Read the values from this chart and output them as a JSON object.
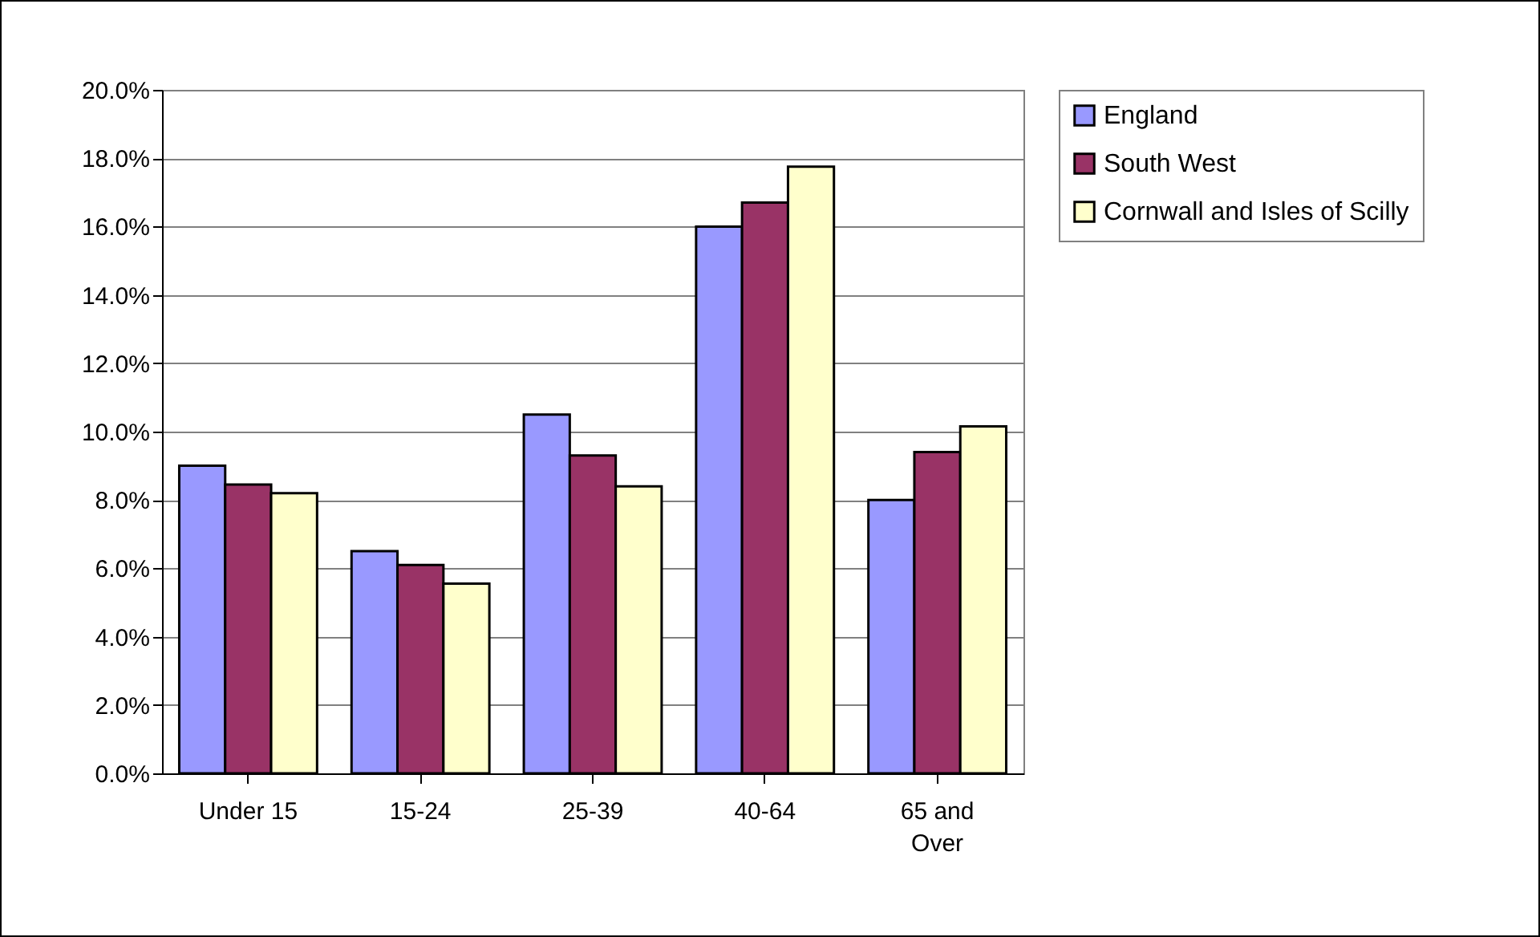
{
  "chart_data": {
    "type": "bar",
    "categories": [
      "Under 15",
      "15-24",
      "25-39",
      "40-64",
      "65 and Over"
    ],
    "series": [
      {
        "name": "England",
        "color": "#9999ff",
        "values": [
          9.0,
          6.5,
          10.5,
          16.0,
          8.0
        ]
      },
      {
        "name": "South West",
        "color": "#993366",
        "values": [
          8.45,
          6.1,
          9.3,
          16.7,
          9.4
        ]
      },
      {
        "name": "Cornwall and Isles of Scilly",
        "color": "#ffffcc",
        "values": [
          8.2,
          5.55,
          8.4,
          17.75,
          10.15
        ]
      }
    ],
    "ylim": [
      0,
      20
    ],
    "yticks": [
      {
        "value": 0,
        "label": "0.0%"
      },
      {
        "value": 2,
        "label": "2.0%"
      },
      {
        "value": 4,
        "label": "4.0%"
      },
      {
        "value": 6,
        "label": "6.0%"
      },
      {
        "value": 8,
        "label": "8.0%"
      },
      {
        "value": 10,
        "label": "10.0%"
      },
      {
        "value": 12,
        "label": "12.0%"
      },
      {
        "value": 14,
        "label": "14.0%"
      },
      {
        "value": 16,
        "label": "16.0%"
      },
      {
        "value": 18,
        "label": "18.0%"
      },
      {
        "value": 20,
        "label": "20.0%"
      }
    ],
    "grid": "y",
    "legend": "right"
  }
}
